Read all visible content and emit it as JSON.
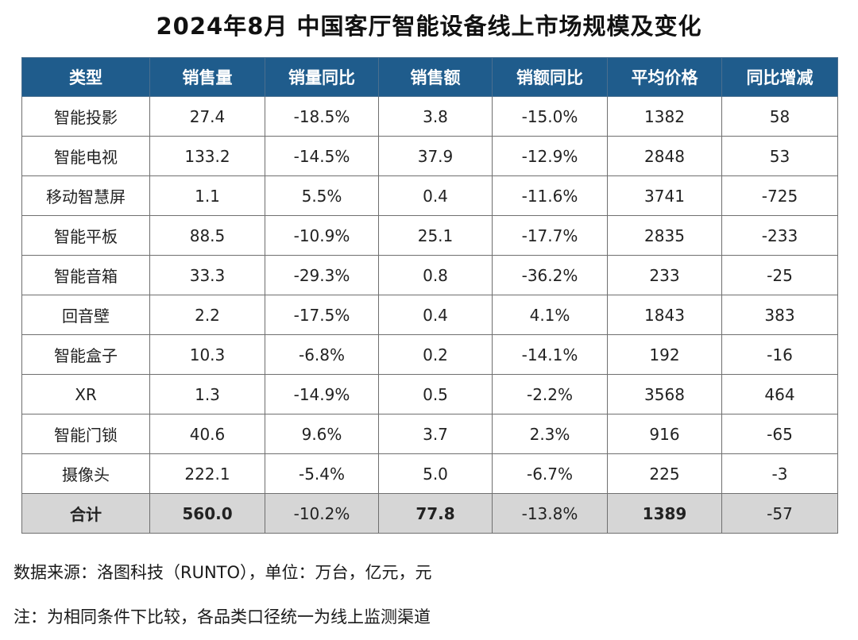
{
  "title": "2024年8月 中国客厅智能设备线上市场规模及变化",
  "chart_data": {
    "type": "table",
    "columns": [
      "类型",
      "销售量",
      "销量同比",
      "销售额",
      "销额同比",
      "平均价格",
      "同比增减"
    ],
    "rows": [
      {
        "type": "智能投影",
        "volume": "27.4",
        "volume_yoy": "-18.5%",
        "sales": "3.8",
        "sales_yoy": "-15.0%",
        "avg_price": "1382",
        "price_change": "58"
      },
      {
        "type": "智能电视",
        "volume": "133.2",
        "volume_yoy": "-14.5%",
        "sales": "37.9",
        "sales_yoy": "-12.9%",
        "avg_price": "2848",
        "price_change": "53"
      },
      {
        "type": "移动智慧屏",
        "volume": "1.1",
        "volume_yoy": "5.5%",
        "sales": "0.4",
        "sales_yoy": "-11.6%",
        "avg_price": "3741",
        "price_change": "-725"
      },
      {
        "type": "智能平板",
        "volume": "88.5",
        "volume_yoy": "-10.9%",
        "sales": "25.1",
        "sales_yoy": "-17.7%",
        "avg_price": "2835",
        "price_change": "-233"
      },
      {
        "type": "智能音箱",
        "volume": "33.3",
        "volume_yoy": "-29.3%",
        "sales": "0.8",
        "sales_yoy": "-36.2%",
        "avg_price": "233",
        "price_change": "-25"
      },
      {
        "type": "回音壁",
        "volume": "2.2",
        "volume_yoy": "-17.5%",
        "sales": "0.4",
        "sales_yoy": "4.1%",
        "avg_price": "1843",
        "price_change": "383"
      },
      {
        "type": "智能盒子",
        "volume": "10.3",
        "volume_yoy": "-6.8%",
        "sales": "0.2",
        "sales_yoy": "-14.1%",
        "avg_price": "192",
        "price_change": "-16"
      },
      {
        "type": "XR",
        "volume": "1.3",
        "volume_yoy": "-14.9%",
        "sales": "0.5",
        "sales_yoy": "-2.2%",
        "avg_price": "3568",
        "price_change": "464"
      },
      {
        "type": "智能门锁",
        "volume": "40.6",
        "volume_yoy": "9.6%",
        "sales": "3.7",
        "sales_yoy": "2.3%",
        "avg_price": "916",
        "price_change": "-65"
      },
      {
        "type": "摄像头",
        "volume": "222.1",
        "volume_yoy": "-5.4%",
        "sales": "5.0",
        "sales_yoy": "-6.7%",
        "avg_price": "225",
        "price_change": "-3"
      }
    ],
    "total": {
      "type": "合计",
      "volume": "560.0",
      "volume_yoy": "-10.2%",
      "sales": "77.8",
      "sales_yoy": "-13.8%",
      "avg_price": "1389",
      "price_change": "-57"
    },
    "colors": {
      "header_bg": "#1f5c8c",
      "header_text": "#ffffff",
      "negative": "#28a745",
      "positive": "#e02020",
      "total_bg": "#d6d6d6"
    }
  },
  "footnotes": {
    "source": "数据来源：洛图科技（RUNTO），单位：万台，亿元，元",
    "note": "注：为相同条件下比较，各品类口径统一为线上监测渠道"
  }
}
